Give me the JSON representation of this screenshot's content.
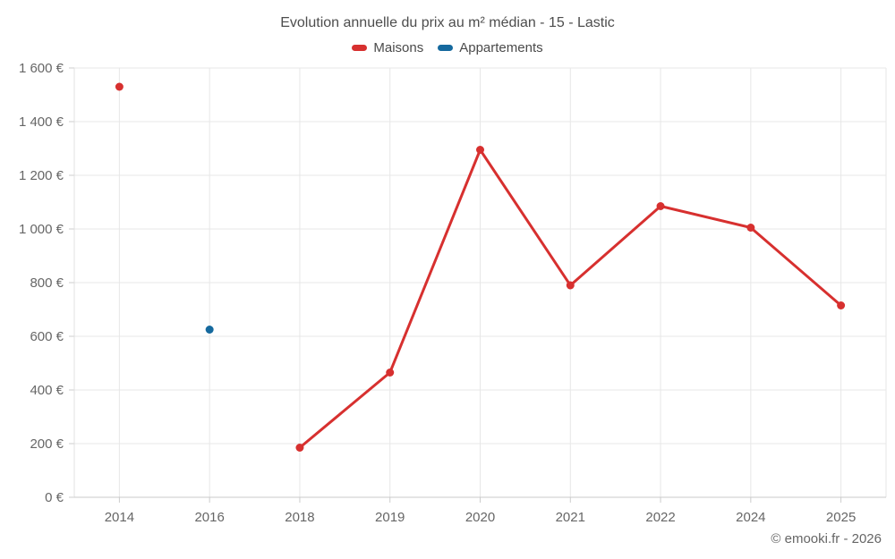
{
  "title": "Evolution annuelle du prix au m² médian - 15 - Lastic",
  "copyright": "© emooki.fr - 2026",
  "colors": {
    "red": "#d7302f",
    "blue": "#15699e",
    "grid": "#e7e7e7",
    "axis_line": "#c9c9c9",
    "left_border": "#e0e0e0",
    "tick": "#cccccc",
    "tick_label": "#666666",
    "title": "#4d4d4d",
    "legend_text": "#4a4a4a",
    "copyright": "#666666"
  },
  "chart_data": {
    "type": "line",
    "title": "Evolution annuelle du prix au m² médian - 15 - Lastic",
    "xlabel": "",
    "ylabel": "",
    "categories": [
      "2014",
      "2016",
      "2018",
      "2019",
      "2020",
      "2021",
      "2022",
      "2024",
      "2025"
    ],
    "series": [
      {
        "name": "Maisons",
        "color": "#d7302f",
        "values": [
          1530,
          null,
          185,
          465,
          1295,
          790,
          1085,
          1005,
          715
        ]
      },
      {
        "name": "Appartements",
        "color": "#15699e",
        "values": [
          null,
          625,
          null,
          null,
          null,
          null,
          null,
          null,
          null
        ]
      }
    ],
    "ylim": [
      0,
      1600
    ],
    "ytick_interval": 200,
    "ytick_suffix": " €",
    "grid": true,
    "legend_position": "top",
    "marker_radius": 4.5,
    "line_width": 3
  }
}
